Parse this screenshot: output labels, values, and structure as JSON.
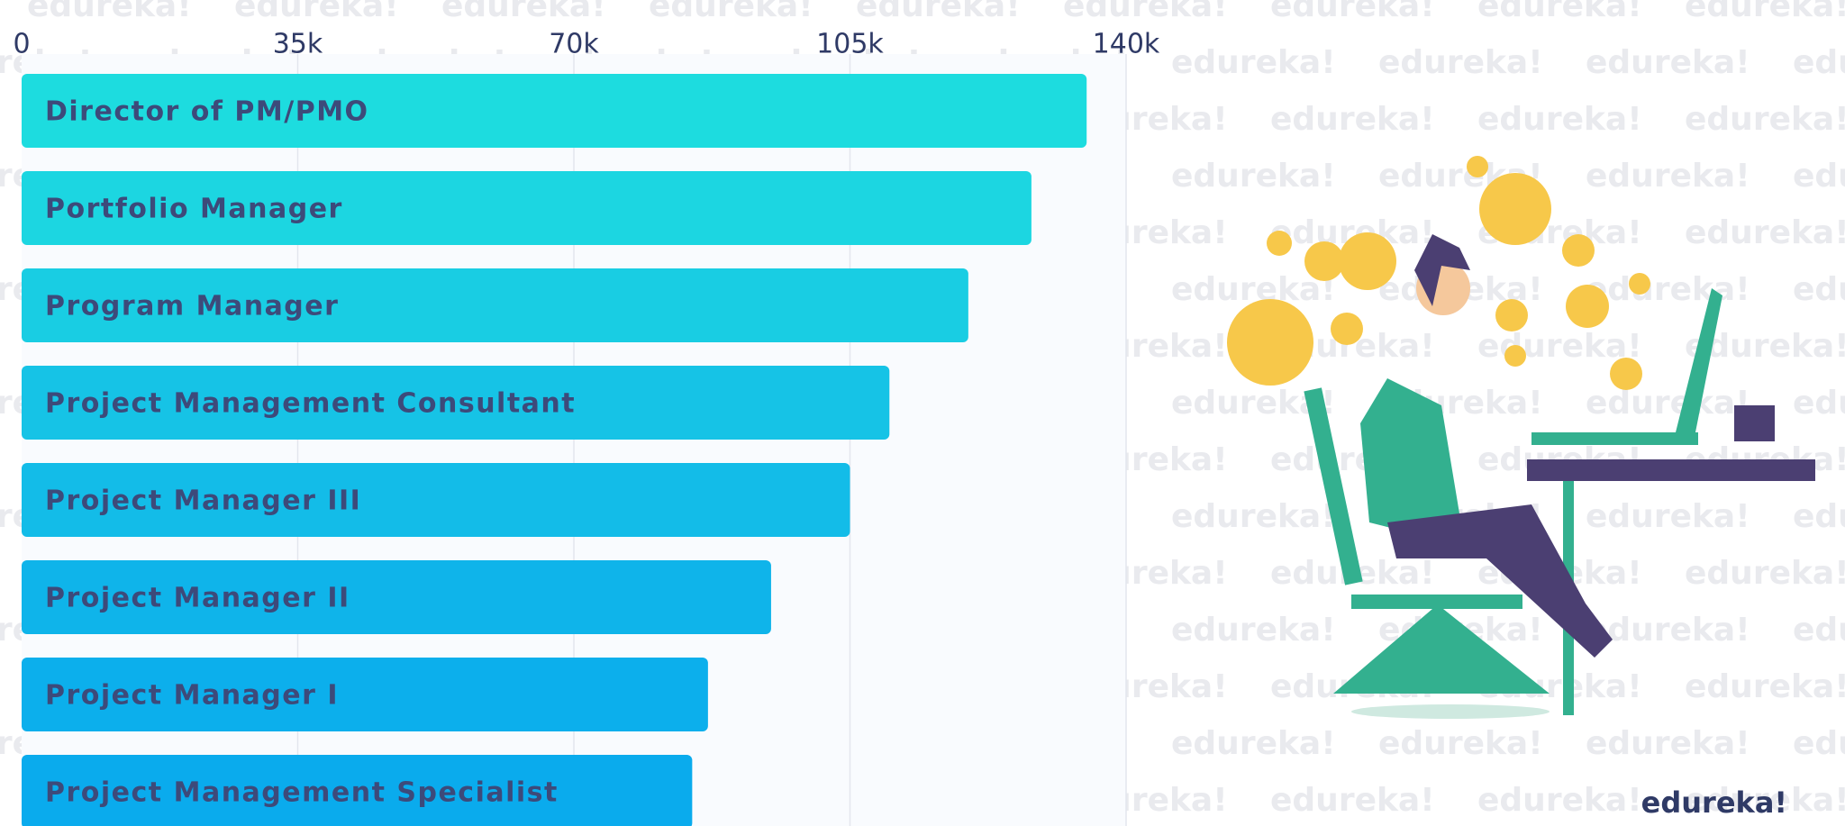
{
  "chart_data": {
    "type": "hbar",
    "categories": [
      "Director of PM/PMO",
      "Portfolio Manager",
      "Program Manager",
      "Project Management Consultant",
      "Project Manager III",
      "Project Manager II",
      "Project Manager I",
      "Project Management Specialist"
    ],
    "values": [
      135000,
      128000,
      120000,
      110000,
      105000,
      95000,
      87000,
      85000
    ],
    "colors": [
      "#1ddcdf",
      "#1cd6e1",
      "#19cde3",
      "#16c3e6",
      "#13bce8",
      "#0fb4ea",
      "#0cafec",
      "#0aabed"
    ],
    "xlim": [
      0,
      140000
    ],
    "xticks": [
      0,
      {
        "value": 35000,
        "label": "35k"
      },
      {
        "value": 70000,
        "label": "70k"
      },
      {
        "value": 105000,
        "label": "105k"
      },
      {
        "value": 140000,
        "label": "140k"
      }
    ],
    "grid": true
  },
  "brand": "edureka!"
}
